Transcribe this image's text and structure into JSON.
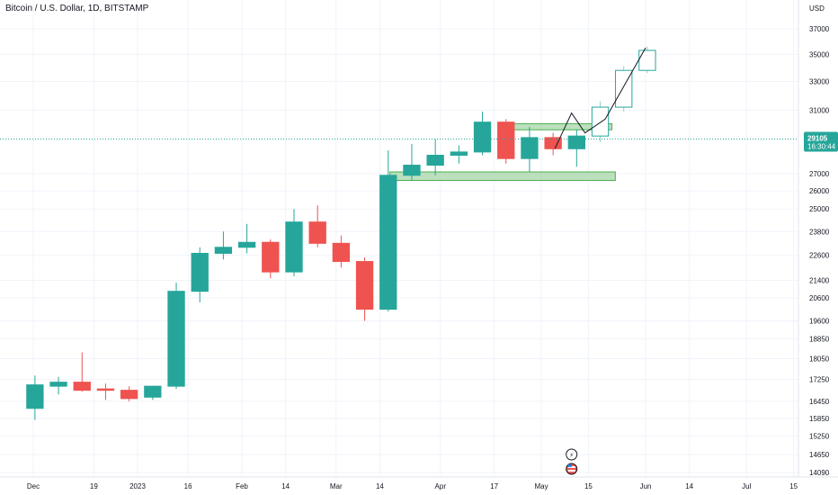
{
  "title": "Bitcoin / U.S. Dollar, 1D, BITSTAMP",
  "price_axis": {
    "unit": "USD",
    "labels": [
      "37000",
      "35000",
      "33000",
      "31000",
      "29105",
      "27000",
      "26000",
      "25000",
      "23800",
      "22600",
      "21400",
      "20600",
      "19600",
      "18850",
      "18050",
      "17250",
      "16450",
      "15850",
      "15250",
      "14650",
      "14090"
    ]
  },
  "time_axis": {
    "labels": [
      "Dec",
      "19",
      "2023",
      "16",
      "Feb",
      "14",
      "Mar",
      "14",
      "Apr",
      "17",
      "May",
      "15",
      "Jun",
      "14",
      "Jul",
      "15"
    ]
  },
  "current_price": {
    "value": "29105",
    "countdown": "16:30:44",
    "color": "#26a69a"
  },
  "colors": {
    "up": "#26a69a",
    "down": "#ef5350",
    "zone_fill": "#a5d6a7",
    "zone_border": "#4caf50",
    "grid": "#f0f3fa",
    "projection": "#131722"
  },
  "event_icons": [
    {
      "name": "lightning-icon",
      "glyph": "⚡"
    },
    {
      "name": "us-flag-icon",
      "glyph": ""
    }
  ],
  "chart_data": {
    "type": "candlestick",
    "title": "Bitcoin / U.S. Dollar, 1D, BITSTAMP",
    "ylabel": "USD",
    "ylim": [
      13800,
      37800
    ],
    "y_scale": "log",
    "x": [
      "2022-11-28",
      "2022-12-05",
      "2022-12-12",
      "2022-12-19",
      "2022-12-26",
      "2023-01-02",
      "2023-01-09",
      "2023-01-16",
      "2023-01-23",
      "2023-01-30",
      "2023-02-06",
      "2023-02-13",
      "2023-02-20",
      "2023-02-27",
      "2023-03-06",
      "2023-03-13",
      "2023-03-20",
      "2023-03-27",
      "2023-04-03",
      "2023-04-10",
      "2023-04-17",
      "2023-04-24",
      "2023-05-01",
      "2023-05-08",
      "2023-05-15",
      "2023-05-22",
      "2023-05-29"
    ],
    "open": [
      16200,
      17000,
      17150,
      16900,
      16850,
      16600,
      17000,
      20900,
      22700,
      23000,
      23250,
      21800,
      24300,
      23200,
      22300,
      20100,
      26900,
      27500,
      28100,
      28300,
      30200,
      27900,
      29200,
      28500,
      29300,
      31200,
      33800
    ],
    "high": [
      17400,
      17350,
      18300,
      17100,
      17000,
      17000,
      21300,
      23000,
      23800,
      24200,
      23400,
      25000,
      25200,
      23600,
      22500,
      28400,
      28800,
      29100,
      28700,
      30900,
      30400,
      29900,
      29500,
      29700,
      31600,
      34100,
      35600
    ],
    "low": [
      15800,
      16700,
      16800,
      16500,
      16450,
      16500,
      16900,
      20400,
      22400,
      22700,
      21500,
      21600,
      23000,
      22000,
      19600,
      20000,
      26600,
      26900,
      27600,
      28100,
      27600,
      27100,
      28100,
      27400,
      28900,
      30900,
      33600
    ],
    "close": [
      17050,
      17150,
      16850,
      16850,
      16550,
      17000,
      20900,
      22700,
      23000,
      23250,
      21800,
      24300,
      23200,
      22300,
      20100,
      26900,
      27500,
      28100,
      28300,
      30200,
      27900,
      29200,
      28500,
      29300,
      31200,
      33800,
      35300
    ],
    "projected_weeks": [
      "2023-05-15",
      "2023-05-22",
      "2023-05-29"
    ],
    "resistance_zone": {
      "from": "2023-04-21",
      "to": "2023-05-22",
      "low": 29700,
      "high": 30100
    },
    "support_zone": {
      "from": "2023-03-17",
      "to": "2023-05-23",
      "low": 26600,
      "high": 27100
    },
    "projection_path": [
      {
        "date": "2023-05-05",
        "price": 28500
      },
      {
        "date": "2023-05-10",
        "price": 30800
      },
      {
        "date": "2023-05-14",
        "price": 29500
      },
      {
        "date": "2023-05-20",
        "price": 30400
      },
      {
        "date": "2023-06-01",
        "price": 35500
      }
    ],
    "current_price": 29105
  }
}
